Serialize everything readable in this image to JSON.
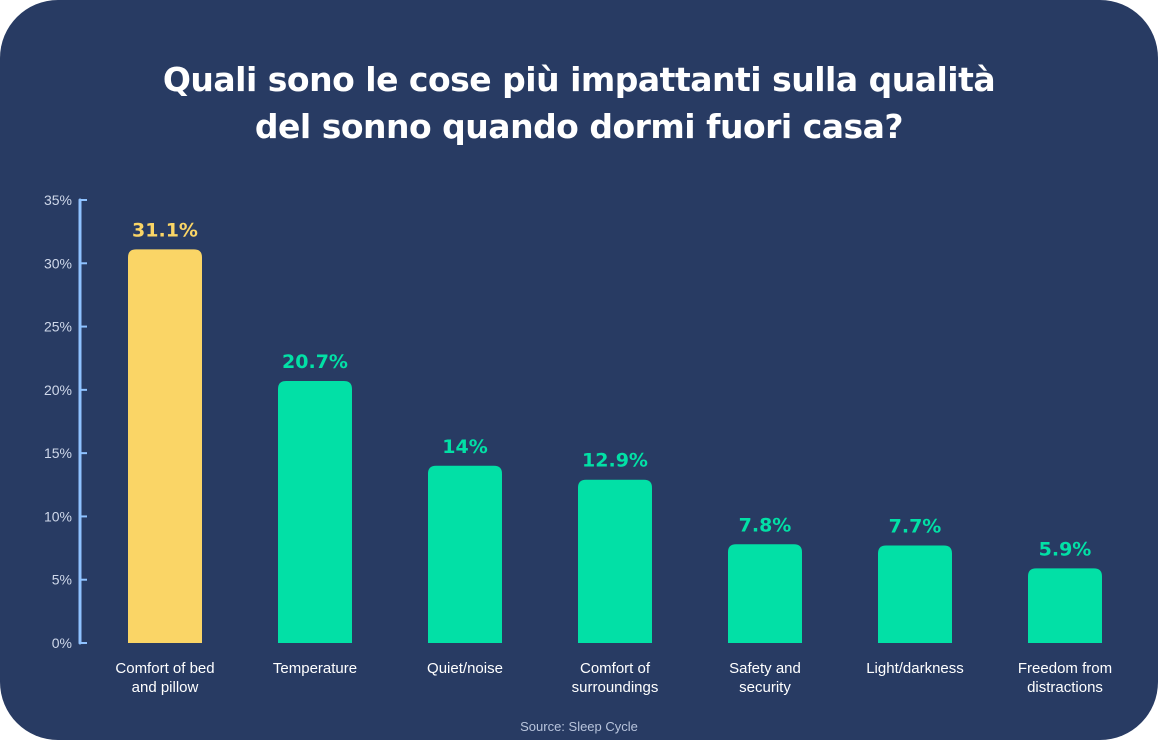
{
  "chart_data": {
    "type": "bar",
    "title": [
      "Quali sono le cose più impattanti sulla qualità",
      "del sonno quando dormi fuori casa?"
    ],
    "categories": [
      [
        "Comfort of bed",
        "and pillow"
      ],
      [
        "Temperature"
      ],
      [
        "Quiet/noise"
      ],
      [
        "Comfort of",
        "surroundings"
      ],
      [
        "Safety and",
        "security"
      ],
      [
        "Light/darkness"
      ],
      [
        "Freedom from",
        "distractions"
      ]
    ],
    "values": [
      31.1,
      20.7,
      14,
      12.9,
      7.8,
      7.7,
      5.9
    ],
    "value_labels": [
      "31.1%",
      "20.7%",
      "14%",
      "12.9%",
      "7.8%",
      "7.7%",
      "5.9%"
    ],
    "ylim": [
      0,
      35
    ],
    "yticks": [
      "0%",
      "5%",
      "10%",
      "15%",
      "20%",
      "25%",
      "30%",
      "35%"
    ],
    "colors": {
      "highlight": "#fad566",
      "bar": "#02e0a6",
      "background": "#283b63",
      "axis": "#8fc2ff"
    },
    "highlight_index": 0,
    "source": "Source: Sleep Cycle"
  }
}
